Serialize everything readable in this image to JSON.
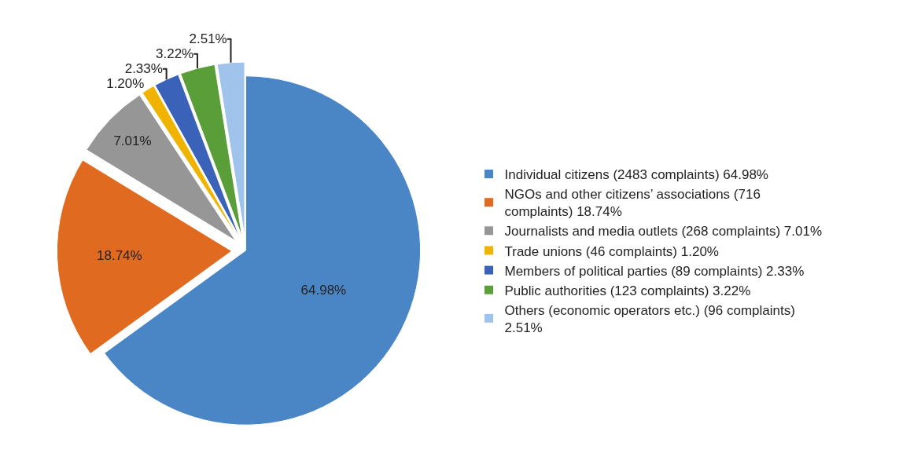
{
  "chart_data": {
    "type": "pie",
    "categories": [
      "Individual citizens (2483 complaints) 64.98%",
      "NGOs and other citizens’ associations (716 complaints) 18.74%",
      "Journalists and media outlets (268 complaints) 7.01%",
      "Trade unions (46 complaints) 1.20%",
      "Members of political parties (89 complaints) 2.33%",
      "Public authorities (123 complaints) 3.22%",
      "Others (economic operators etc.) (96 complaints) 2.51%"
    ],
    "values": [
      64.98,
      18.74,
      7.01,
      1.2,
      2.33,
      3.22,
      2.51
    ],
    "value_labels": [
      "64.98%",
      "18.74%",
      "7.01%",
      "1.20%",
      "2.33%",
      "3.22%",
      "2.51%"
    ],
    "colors": [
      "#4a86c5",
      "#e06b20",
      "#969696",
      "#f0b400",
      "#3a62b8",
      "#5a9e3a",
      "#9fc3ea"
    ],
    "legend": "right"
  }
}
